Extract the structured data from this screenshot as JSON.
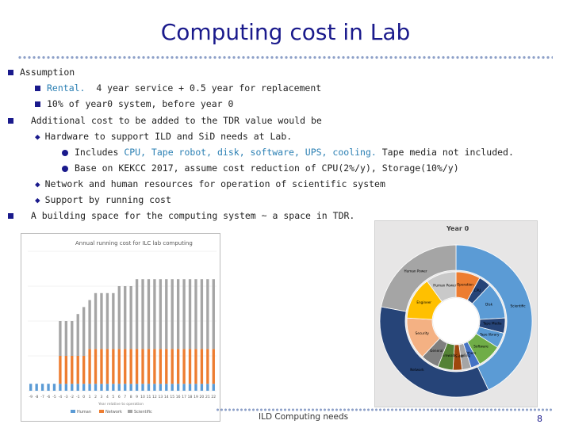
{
  "slide": {
    "title": "Computing cost in Lab",
    "footer": "ILD Computing needs",
    "page_number": "8"
  },
  "bullets": {
    "b1": "Assumption",
    "b1a_prefix": "Rental.",
    "b1a_rest": "4 year service + 0.5 year for replacement",
    "b1b": "10% of year0 system, before year 0",
    "b2": "Additional cost to be added to the TDR value would be",
    "b2a": "Hardware to support ILD and SiD needs at Lab.",
    "b2a_i_prefix": "Includes ",
    "b2a_i_hl": "CPU, Tape robot, disk, software, UPS, cooling.",
    "b2a_i_rest": " Tape media not included.",
    "b2a_ii": "Base on KEKCC 2017, assume cost reduction of CPU(2%/y), Storage(10%/y)",
    "b2b": "Network and human resources for operation of scientific system",
    "b2c": "Support by running cost",
    "b3": "A building space for the computing system ~ a space in TDR."
  },
  "colors": {
    "human": "#5b9bd5",
    "network": "#ed7d31",
    "scientific": "#a5a5a5"
  },
  "chart_data": [
    {
      "type": "bar",
      "title": "Annual running cost for ILC lab computing",
      "xlabel": "Year relative to operation",
      "categories": [
        "-9",
        "-8",
        "-7",
        "-6",
        "-5",
        "-4",
        "-3",
        "-2",
        "-1",
        "0",
        "1",
        "2",
        "3",
        "4",
        "5",
        "6",
        "7",
        "8",
        "9",
        "10",
        "11",
        "12",
        "13",
        "14",
        "15",
        "16",
        "17",
        "18",
        "19",
        "20",
        "21",
        "22"
      ],
      "series": [
        {
          "name": "Human",
          "values": [
            1,
            1,
            1,
            1,
            1,
            1,
            1,
            1,
            1,
            1,
            1,
            1,
            1,
            1,
            1,
            1,
            1,
            1,
            1,
            1,
            1,
            1,
            1,
            1,
            1,
            1,
            1,
            1,
            1,
            1,
            1,
            1
          ]
        },
        {
          "name": "Network",
          "values": [
            0,
            0,
            0,
            0,
            0,
            4,
            4,
            4,
            4,
            4,
            5,
            5,
            5,
            5,
            5,
            5,
            5,
            5,
            5,
            5,
            5,
            5,
            5,
            5,
            5,
            5,
            5,
            5,
            5,
            5,
            5,
            5
          ]
        },
        {
          "name": "Scientific",
          "values": [
            0,
            0,
            0,
            0,
            0,
            5,
            5,
            5,
            6,
            7,
            7,
            8,
            8,
            8,
            8,
            9,
            9,
            9,
            10,
            10,
            10,
            10,
            10,
            10,
            10,
            10,
            10,
            10,
            10,
            10,
            10,
            10
          ]
        }
      ]
    },
    {
      "type": "pie",
      "title": "Year 0",
      "inner_ring": [
        {
          "label": "Operation",
          "value": 8,
          "color": "#ed7d31"
        },
        {
          "label": "CPU",
          "value": 4,
          "color": "#264478"
        },
        {
          "label": "Disk",
          "value": 12,
          "color": "#5b9bd5"
        },
        {
          "label": "Tape Media",
          "value": 5,
          "color": "#264478"
        },
        {
          "label": "Tape library",
          "value": 5,
          "color": "#5b9bd5"
        },
        {
          "label": "Software",
          "value": 8,
          "color": "#70ad47"
        },
        {
          "label": "Others",
          "value": 3,
          "color": "#4472c4"
        },
        {
          "label": "Cooling",
          "value": 3,
          "color": "#a5a5a5"
        },
        {
          "label": "UPS etc",
          "value": 3,
          "color": "#9e480e"
        },
        {
          "label": "Firewall",
          "value": 5,
          "color": "#548235"
        },
        {
          "label": "General",
          "value": 6,
          "color": "#7f7f7f"
        },
        {
          "label": "Security",
          "value": 14,
          "color": "#f4b183"
        },
        {
          "label": "Engineer",
          "value": 14,
          "color": "#ffc000"
        },
        {
          "label": "Human Power",
          "value": 10,
          "color": "#c9c9c9"
        }
      ],
      "outer_ring": [
        {
          "label": "Scientific",
          "value": 43,
          "color": "#5b9bd5"
        },
        {
          "label": "Network",
          "value": 35,
          "color": "#264478"
        },
        {
          "label": "Human Power",
          "value": 22,
          "color": "#a5a5a5"
        }
      ]
    }
  ]
}
